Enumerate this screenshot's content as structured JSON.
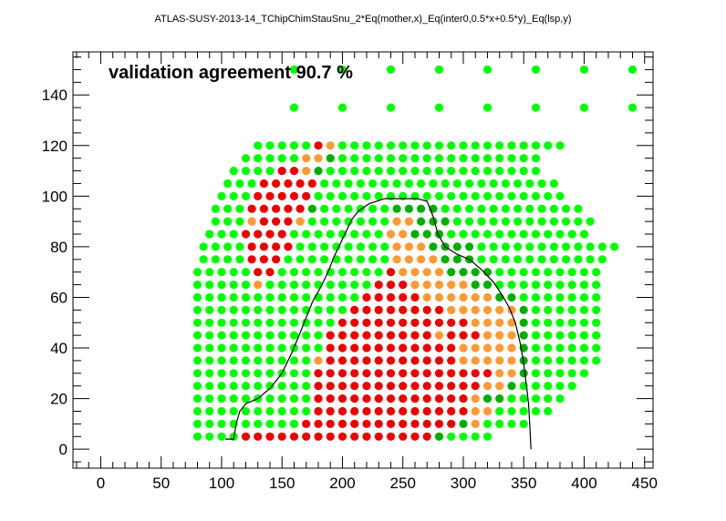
{
  "chart_data": {
    "type": "scatter",
    "title": "ATLAS-SUSY-2013-14_TChipChimStauSnu_2*Eq(mother,x)_Eq(inter0,0.5*x+0.5*y)_Eq(lsp,y)",
    "annotation": "validation agreement 90.7 %",
    "xlabel": "",
    "ylabel": "",
    "xlim": [
      -23,
      457
    ],
    "ylim": [
      -7.5,
      157
    ],
    "xticks": [
      0,
      50,
      100,
      150,
      200,
      250,
      300,
      350,
      400,
      450
    ],
    "yticks": [
      0,
      20,
      40,
      60,
      80,
      100,
      120,
      140
    ],
    "grid": false,
    "colors": {
      "bright_green": "#00ff00",
      "dark_green": "#00b000",
      "orange": "#ff9933",
      "red": "#ee0000",
      "contour": "#000000"
    },
    "grid_points": {
      "x_start": 80,
      "x_step": 10,
      "y_start": 5,
      "y_step": 5,
      "rows": [
        {
          "y": 5,
          "codes": "GGGGRRRRRRRRRRRRRRRRDGGGG"
        },
        {
          "y": 10,
          "codes": "GGGGGGGGGRRRRRRRRRRRRRDOGGGG"
        },
        {
          "y": 15,
          "codes": "GGGGGGGGGGRRRRRRRRRRRRROOGGGGG"
        },
        {
          "y": 20,
          "codes": "GGGGGGGGGGRRRRRRRRRRRRRODDGGGGG"
        },
        {
          "y": 25,
          "codes": "GGGGGGGGGGRRRRRRRRRRRRRROODGGGGG"
        },
        {
          "y": 30,
          "codes": "GGGGGGGGGGRRRRRRRRRRRRRRROODGGGGG"
        },
        {
          "y": 35,
          "codes": "GGGGGGGGGGORRRRRRRRRRROOOOODGGGGGG"
        },
        {
          "y": 40,
          "codes": "GGGGGGGGGGGRRRRRRRRRRROOOOODGGGGGG"
        },
        {
          "y": 45,
          "codes": "GGGGGGGGGGGRRRRRRRRRORRROOODGGGGGG"
        },
        {
          "y": 50,
          "codes": "GGGGGGGGGGGGRRRRRRRRRRROOOODGGGGGG"
        },
        {
          "y": 55,
          "codes": "GGGGGGGGGGGGGRRRRRRRROOOOOODGGGGGG"
        },
        {
          "y": 60,
          "codes": "GGGGGGGGGGGGGGRRRRROOOOOODDGGGGGGG"
        },
        {
          "y": 65,
          "codes": "GGGGGOGGGGGGGGGRRROOOOODDGGGGGGGGG"
        },
        {
          "y": 70,
          "codes": "GGGGGRRGGGGGGGGGROOOODDDDGGGGGGGGG"
        },
        {
          "y": 75,
          "codes": "GGGGRRRGGGGGGGGGOOOODDDGGGGGGGGGGG"
        },
        {
          "y": 80,
          "codes": "GGGGRRRRGGGGGGGGOOODDDDGGGGGGGGGGGG"
        },
        {
          "y": 85,
          "codes": "GGGRRRRGGGGGGGGOODDDGGGGGGGGGGGG"
        },
        {
          "y": 90,
          "codes": "GGGORRROGGGGGGGOODDDGGGGGGGGGGGG"
        },
        {
          "y": 95,
          "codes": "GGGRRRRRDGGGGGGDDDDGGGGGGGGGGGG"
        },
        {
          "y": 100,
          "codes": "GGGRRRRRGGGGGGGGGGGGGGGGGGGGG"
        },
        {
          "y": 105,
          "codes": "GGGRRRRRGGGGGGGGGGGGGGGGGGGG"
        },
        {
          "y": 110,
          "codes": "GGGGRRODGGGGGGGGGGGGGGGGGG"
        },
        {
          "y": 115,
          "codes": "GGGGGOODGGGGGGGGGGGGGGGGG"
        },
        {
          "y": 120,
          "codes": "GGGGGROGGGGGGGGGGGGGGGGGGG"
        }
      ],
      "row_x_start": [
        80,
        80,
        80,
        80,
        80,
        80,
        80,
        80,
        80,
        80,
        80,
        80,
        80,
        80,
        85,
        85,
        90,
        95,
        95,
        100,
        105,
        110,
        120,
        130
      ]
    },
    "sparse_points": [
      {
        "x": 160,
        "y": 135,
        "code": "G"
      },
      {
        "x": 200,
        "y": 135,
        "code": "G"
      },
      {
        "x": 240,
        "y": 135,
        "code": "G"
      },
      {
        "x": 280,
        "y": 135,
        "code": "G"
      },
      {
        "x": 320,
        "y": 135,
        "code": "G"
      },
      {
        "x": 360,
        "y": 135,
        "code": "G"
      },
      {
        "x": 400,
        "y": 135,
        "code": "G"
      },
      {
        "x": 440,
        "y": 135,
        "code": "G"
      },
      {
        "x": 160,
        "y": 150,
        "code": "G"
      },
      {
        "x": 200,
        "y": 150,
        "code": "G"
      },
      {
        "x": 240,
        "y": 150,
        "code": "G"
      },
      {
        "x": 280,
        "y": 150,
        "code": "G"
      },
      {
        "x": 320,
        "y": 150,
        "code": "G"
      },
      {
        "x": 360,
        "y": 150,
        "code": "G"
      },
      {
        "x": 400,
        "y": 150,
        "code": "G"
      },
      {
        "x": 440,
        "y": 150,
        "code": "G"
      }
    ],
    "contour": [
      [
        103,
        4
      ],
      [
        110,
        4
      ],
      [
        112,
        10
      ],
      [
        115,
        15
      ],
      [
        120,
        18
      ],
      [
        130,
        20
      ],
      [
        140,
        24
      ],
      [
        150,
        30
      ],
      [
        158,
        38
      ],
      [
        165,
        46
      ],
      [
        170,
        52
      ],
      [
        175,
        58
      ],
      [
        182,
        64
      ],
      [
        188,
        70
      ],
      [
        193,
        76
      ],
      [
        198,
        81
      ],
      [
        203,
        86
      ],
      [
        208,
        91
      ],
      [
        213,
        94
      ],
      [
        222,
        97
      ],
      [
        235,
        99
      ],
      [
        250,
        99
      ],
      [
        262,
        99
      ],
      [
        270,
        98
      ],
      [
        275,
        92
      ],
      [
        279,
        85
      ],
      [
        285,
        80
      ],
      [
        295,
        77
      ],
      [
        305,
        75
      ],
      [
        315,
        71
      ],
      [
        325,
        66
      ],
      [
        332,
        61
      ],
      [
        338,
        56
      ],
      [
        343,
        50
      ],
      [
        347,
        42
      ],
      [
        350,
        34
      ],
      [
        352,
        26
      ],
      [
        354,
        18
      ],
      [
        355,
        10
      ],
      [
        356,
        0
      ]
    ]
  }
}
